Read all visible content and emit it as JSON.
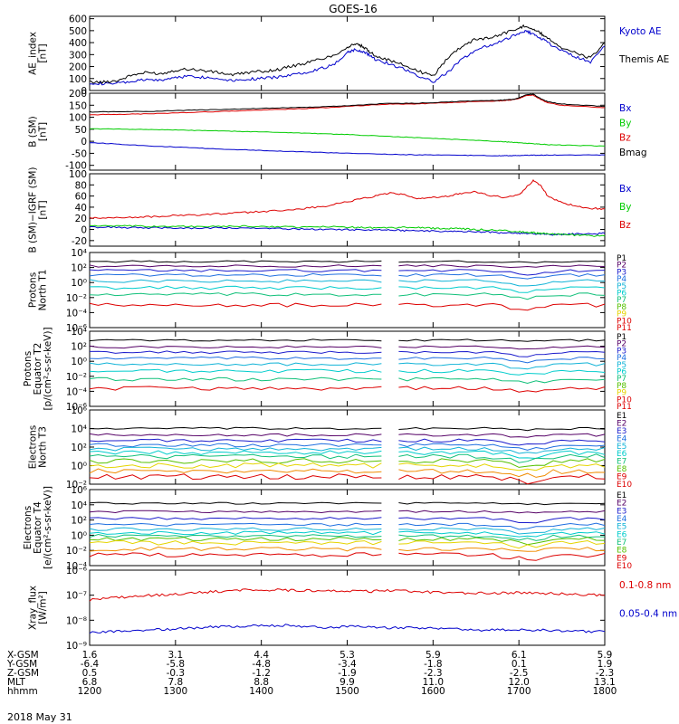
{
  "title": "GOES-16",
  "date_label": "2018 May 31",
  "colors": {
    "axis": "#000000",
    "black": "#000000",
    "blue": "#0000cc",
    "green": "#00cc00",
    "red": "#dd0000",
    "P": [
      "#000000",
      "#550066",
      "#1c1ccc",
      "#1f6fe0",
      "#11b3d7",
      "#00cccc",
      "#11c07a",
      "#55c000",
      "#e5d400",
      "#f08c00",
      "#dd0000"
    ],
    "E": [
      "#000000",
      "#550066",
      "#1c1ccc",
      "#1f6fe0",
      "#11b3d7",
      "#00cccc",
      "#11c07a",
      "#55c000",
      "#e5d400",
      "#f08c00"
    ]
  },
  "chart_data": [
    {
      "type": "line",
      "id": "ae",
      "ylabel": "AE_index\n[nT]",
      "ylim": [
        0,
        620
      ],
      "yticks": [
        "600",
        "500",
        "400",
        "300",
        "200",
        "100",
        "0"
      ],
      "ytick_values": [
        600,
        500,
        400,
        300,
        200,
        100,
        0
      ],
      "x": [
        1200,
        1210,
        1220,
        1230,
        1240,
        1250,
        1300,
        1310,
        1320,
        1330,
        1340,
        1350,
        1400,
        1410,
        1420,
        1430,
        1440,
        1450,
        1500,
        1505,
        1510,
        1515,
        1520,
        1530,
        1540,
        1550,
        1600,
        1610,
        1620,
        1630,
        1640,
        1650,
        1700,
        1705,
        1710,
        1715,
        1720,
        1730,
        1740,
        1750,
        1800
      ],
      "series": [
        {
          "name": "Kyoto AE",
          "color_key": "blue",
          "values": [
            65,
            55,
            60,
            75,
            90,
            85,
            110,
            120,
            110,
            100,
            85,
            95,
            100,
            110,
            130,
            150,
            180,
            210,
            320,
            340,
            330,
            300,
            260,
            220,
            180,
            120,
            70,
            150,
            260,
            340,
            380,
            420,
            480,
            500,
            470,
            440,
            400,
            330,
            280,
            240,
            370
          ]
        },
        {
          "name": "Themis AE",
          "color_key": "black",
          "values": [
            70,
            70,
            85,
            130,
            150,
            140,
            170,
            180,
            165,
            150,
            130,
            150,
            160,
            170,
            200,
            225,
            260,
            290,
            360,
            390,
            370,
            330,
            290,
            250,
            210,
            160,
            120,
            270,
            370,
            430,
            440,
            480,
            520,
            545,
            510,
            480,
            440,
            360,
            310,
            270,
            400
          ]
        }
      ]
    },
    {
      "type": "line",
      "id": "b",
      "ylabel": "B (SM)\n[nT]",
      "ylim": [
        -120,
        200
      ],
      "yticks": [
        "200",
        "150",
        "100",
        "50",
        "0",
        "-50",
        "-100"
      ],
      "ytick_values": [
        200,
        150,
        100,
        50,
        0,
        -50,
        -100
      ],
      "x": [
        1200,
        1215,
        1230,
        1245,
        1300,
        1315,
        1330,
        1345,
        1400,
        1415,
        1430,
        1445,
        1500,
        1515,
        1530,
        1545,
        1600,
        1615,
        1630,
        1645,
        1650,
        1655,
        1700,
        1705,
        1710,
        1715,
        1720,
        1730,
        1745,
        1800
      ],
      "series": [
        {
          "name": "Bx",
          "color_key": "blue",
          "values": [
            -5,
            -10,
            -15,
            -20,
            -24,
            -28,
            -32,
            -35,
            -38,
            -41,
            -44,
            -47,
            -50,
            -52,
            -54,
            -56,
            -57,
            -58,
            -59,
            -60,
            -60,
            -60,
            -59,
            -58,
            -58,
            -58,
            -57,
            -57,
            -57,
            -57
          ]
        },
        {
          "name": "By",
          "color_key": "green",
          "values": [
            52,
            51,
            50,
            49,
            47,
            45,
            43,
            41,
            39,
            37,
            34,
            31,
            28,
            24,
            20,
            16,
            12,
            8,
            4,
            0,
            -2,
            -4,
            -6,
            -8,
            -10,
            -12,
            -14,
            -16,
            -18,
            -20
          ]
        },
        {
          "name": "Bz",
          "color_key": "red",
          "values": [
            110,
            112,
            113,
            115,
            118,
            121,
            124,
            127,
            130,
            133,
            136,
            140,
            145,
            150,
            155,
            155,
            158,
            162,
            165,
            168,
            170,
            172,
            178,
            190,
            192,
            175,
            160,
            150,
            145,
            140
          ]
        },
        {
          "name": "Bmag",
          "color_key": "black",
          "values": [
            122,
            123,
            124,
            125,
            128,
            130,
            132,
            134,
            137,
            139,
            141,
            144,
            148,
            153,
            158,
            158,
            161,
            165,
            168,
            170,
            172,
            174,
            180,
            194,
            196,
            179,
            165,
            155,
            150,
            145
          ]
        }
      ]
    },
    {
      "type": "line",
      "id": "bres",
      "ylabel": "B (SM)−IGRF (SM)\n[nT]",
      "ylim": [
        -30,
        100
      ],
      "yticks": [
        "100",
        "80",
        "60",
        "40",
        "20",
        "0",
        "-20"
      ],
      "ytick_values": [
        100,
        80,
        60,
        40,
        20,
        0,
        -20
      ],
      "x": [
        1200,
        1215,
        1230,
        1245,
        1300,
        1315,
        1330,
        1345,
        1400,
        1415,
        1430,
        1445,
        1500,
        1510,
        1520,
        1530,
        1540,
        1550,
        1600,
        1610,
        1620,
        1630,
        1640,
        1650,
        1700,
        1705,
        1710,
        1715,
        1720,
        1730,
        1740,
        1750,
        1800
      ],
      "series": [
        {
          "name": "Bx",
          "color_key": "blue",
          "values": [
            4,
            4,
            3,
            3,
            3,
            2,
            3,
            2,
            2,
            1,
            1,
            0,
            0,
            -1,
            0,
            -1,
            -2,
            -2,
            -3,
            -3,
            -4,
            -4,
            -5,
            -6,
            -7,
            -7,
            -8,
            -8,
            -9,
            -9,
            -8,
            -8,
            -7
          ]
        },
        {
          "name": "By",
          "color_key": "green",
          "values": [
            7,
            6,
            6,
            5,
            6,
            5,
            5,
            6,
            5,
            5,
            4,
            5,
            4,
            4,
            3,
            3,
            4,
            3,
            2,
            2,
            1,
            0,
            -1,
            -2,
            -4,
            -5,
            -6,
            -7,
            -8,
            -9,
            -10,
            -11,
            -12
          ]
        },
        {
          "name": "Bz",
          "color_key": "red",
          "values": [
            20,
            21,
            22,
            23,
            25,
            26,
            28,
            30,
            32,
            34,
            38,
            42,
            50,
            55,
            60,
            65,
            62,
            55,
            58,
            60,
            65,
            68,
            60,
            58,
            62,
            75,
            88,
            80,
            60,
            48,
            42,
            38,
            37
          ]
        }
      ]
    },
    {
      "type": "line",
      "id": "pn",
      "log": true,
      "ylabel": "Protons\nNorth T1",
      "ylim_exp": [
        -6,
        4
      ],
      "yticks": [
        "10⁴",
        "10²",
        "10⁰",
        "10⁻²",
        "10⁻⁴",
        "10⁻⁶"
      ],
      "ytick_exp": [
        4,
        2,
        0,
        -2,
        -4,
        -6
      ],
      "gap": [
        1525,
        1535
      ],
      "legend": [
        "P1",
        "P2",
        "P3",
        "P4",
        "P5",
        "P6",
        "P7",
        "P8",
        "P9",
        "P10",
        "P11"
      ],
      "levels": [
        2.8,
        2.2,
        1.6,
        1.0,
        0.2,
        -0.7,
        -1.6,
        -3.0
      ]
    },
    {
      "type": "line",
      "id": "pe",
      "log": true,
      "ylabel": "Protons\nEquator T2\n[p/(cm²-s-sr-keV)]",
      "ylim_exp": [
        -6,
        4
      ],
      "yticks": [
        "10⁴",
        "10²",
        "10⁰",
        "10⁻²",
        "10⁻⁴",
        "10⁻⁶"
      ],
      "ytick_exp": [
        4,
        2,
        0,
        -2,
        -4,
        -6
      ],
      "gap": [
        1525,
        1535
      ],
      "legend": [
        "P1",
        "P2",
        "P3",
        "P4",
        "P5",
        "P6",
        "P7",
        "P8",
        "P9",
        "P10",
        "P11"
      ],
      "levels": [
        2.8,
        1.9,
        1.2,
        0.4,
        -0.4,
        -1.3,
        -2.4,
        -3.6
      ]
    },
    {
      "type": "line",
      "id": "en",
      "log": true,
      "ylabel": "Electrons\nNorth T3",
      "ylim_exp": [
        -2,
        6
      ],
      "yticks": [
        "10⁶",
        "10⁴",
        "10²",
        "10⁰",
        "10⁻²"
      ],
      "ytick_exp": [
        6,
        4,
        2,
        0,
        -2
      ],
      "gap": [
        1525,
        1535
      ],
      "legend": [
        "E1",
        "E2",
        "E3",
        "E4",
        "E5",
        "E6",
        "E7",
        "E8",
        "E9",
        "E10"
      ],
      "levels": [
        4.0,
        3.3,
        2.7,
        2.2,
        1.8,
        1.4,
        1.0,
        0.5,
        0.0,
        -0.6,
        -1.2
      ]
    },
    {
      "type": "line",
      "id": "ee",
      "log": true,
      "ylabel": "Electrons\nEquator T4\n[e/(cm²-s-sr-keV)]",
      "ylim_exp": [
        -4,
        6
      ],
      "yticks": [
        "10⁶",
        "10⁴",
        "10²",
        "10⁰",
        "10⁻²",
        "10⁻⁴"
      ],
      "ytick_exp": [
        6,
        4,
        2,
        0,
        -2,
        -4
      ],
      "gap": [
        1525,
        1535
      ],
      "legend": [
        "E1",
        "E2",
        "E3",
        "E4",
        "E5",
        "E6",
        "E7",
        "E8",
        "E9",
        "E10"
      ],
      "levels": [
        4.2,
        3.1,
        2.2,
        1.4,
        0.8,
        0.3,
        -0.1,
        -0.5,
        -1.0,
        -1.8,
        -2.6
      ]
    },
    {
      "type": "line",
      "id": "xray",
      "log": true,
      "ylabel": "Xray_flux\n[W/m²]",
      "ylim_exp": [
        -9,
        -6
      ],
      "yticks": [
        "10⁻⁶",
        "10⁻⁷",
        "10⁻⁸",
        "10⁻⁹"
      ],
      "ytick_exp": [
        -6,
        -7,
        -8,
        -9
      ],
      "x": [
        1200,
        1215,
        1230,
        1245,
        1300,
        1315,
        1330,
        1345,
        1400,
        1415,
        1430,
        1445,
        1500,
        1515,
        1530,
        1545,
        1600,
        1615,
        1630,
        1645,
        1700,
        1715,
        1730,
        1745,
        1800
      ],
      "series": [
        {
          "name": "0.1-0.8 nm",
          "color_key": "red",
          "values": [
            -7.2,
            -7.1,
            -7.05,
            -7.0,
            -6.95,
            -6.9,
            -6.85,
            -6.8,
            -6.78,
            -6.8,
            -6.82,
            -6.8,
            -6.82,
            -6.85,
            -6.82,
            -6.85,
            -6.88,
            -6.9,
            -6.92,
            -6.92,
            -6.9,
            -6.92,
            -6.95,
            -6.97,
            -7.0
          ]
        },
        {
          "name": "0.05-0.4 nm",
          "color_key": "blue",
          "values": [
            -8.5,
            -8.45,
            -8.4,
            -8.38,
            -8.35,
            -8.3,
            -8.25,
            -8.25,
            -8.22,
            -8.2,
            -8.25,
            -8.28,
            -8.25,
            -8.25,
            -8.3,
            -8.3,
            -8.32,
            -8.35,
            -8.4,
            -8.38,
            -8.38,
            -8.4,
            -8.42,
            -8.45,
            -8.45
          ]
        }
      ]
    }
  ],
  "axis_table": {
    "labels": [
      "X-GSM",
      "Y-GSM",
      "Z-GSM",
      "MLT",
      "hhmm"
    ],
    "columns": [
      [
        "1.6",
        "-6.4",
        "0.5",
        "6.8",
        "1200"
      ],
      [
        "3.1",
        "-5.8",
        "-0.3",
        "7.8",
        "1300"
      ],
      [
        "4.4",
        "-4.8",
        "-1.2",
        "8.8",
        "1400"
      ],
      [
        "5.3",
        "-3.4",
        "-1.9",
        "9.9",
        "1500"
      ],
      [
        "5.9",
        "-1.8",
        "-2.3",
        "11.0",
        "1600"
      ],
      [
        "6.1",
        "0.1",
        "-2.5",
        "12.0",
        "1700"
      ],
      [
        "5.9",
        "1.9",
        "-2.3",
        "13.1",
        "1800"
      ]
    ]
  }
}
